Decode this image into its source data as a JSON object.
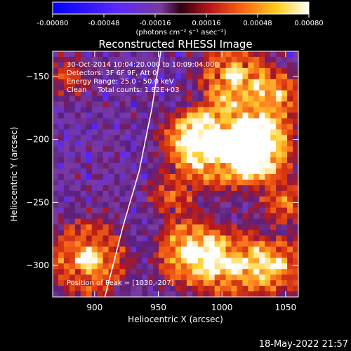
{
  "colorbar": {
    "ticks": [
      "-0.00080",
      "-0.00048",
      "-0.00016",
      "0.00016",
      "0.00048",
      "0.00080"
    ],
    "unit_label": "(photons cm⁻² s⁻¹ asec⁻²)"
  },
  "chart_data": {
    "type": "heatmap",
    "title": "Reconstructed RHESSI Image",
    "xlabel": "Heliocentric X (arcsec)",
    "ylabel": "Heliocentric Y (arcsec)",
    "xlim": [
      867,
      1060
    ],
    "ylim": [
      -325,
      -130
    ],
    "x_ticks": [
      900,
      950,
      1000,
      1050
    ],
    "y_ticks": [
      -150,
      -200,
      -250,
      -300
    ],
    "value_range": [
      -0.0008,
      0.0008
    ],
    "colormap": [
      "#0000ff",
      "#5a28ff",
      "#7a3aa0",
      "#5a2080",
      "#b01820",
      "#e04010",
      "#ff8020",
      "#ffd030",
      "#ffffff"
    ],
    "annotations": {
      "time_range": "30-Oct-2014 10:04:20.000 to 10:09:04.000",
      "detectors": "Detectors: 3F 6F 9F, Att 0",
      "energy_range": "Energy Range: 25.0 - 50.0 keV",
      "clean": "Clean     Total counts: 1.82E+03",
      "peak": "Position of Peak = [1030,-207]"
    },
    "peak": {
      "x": 1030,
      "y": -207
    },
    "limb_curve": [
      [
        952,
        -130
      ],
      [
        945,
        -175
      ],
      [
        935,
        -225
      ],
      [
        922,
        -270
      ],
      [
        908,
        -325
      ]
    ],
    "hot_regions": [
      {
        "x": 1030,
        "y": -207,
        "r": 22,
        "v": 1.0
      },
      {
        "x": 1000,
        "y": -205,
        "r": 30,
        "v": 0.8
      },
      {
        "x": 975,
        "y": -200,
        "r": 20,
        "v": 0.6
      },
      {
        "x": 975,
        "y": -290,
        "r": 22,
        "v": 0.85
      },
      {
        "x": 1010,
        "y": -300,
        "r": 24,
        "v": 0.7
      },
      {
        "x": 1045,
        "y": -300,
        "r": 20,
        "v": 0.6
      },
      {
        "x": 895,
        "y": -295,
        "r": 26,
        "v": 0.7
      },
      {
        "x": 1010,
        "y": -150,
        "r": 22,
        "v": 0.75
      },
      {
        "x": 1045,
        "y": -165,
        "r": 18,
        "v": 0.6
      },
      {
        "x": 880,
        "y": -150,
        "r": 14,
        "v": 0.4
      },
      {
        "x": 1050,
        "y": -250,
        "r": 16,
        "v": 0.5
      },
      {
        "x": 960,
        "y": -245,
        "r": 16,
        "v": 0.4
      }
    ]
  },
  "footer": {
    "timestamp": "18-May-2022 21:57"
  }
}
